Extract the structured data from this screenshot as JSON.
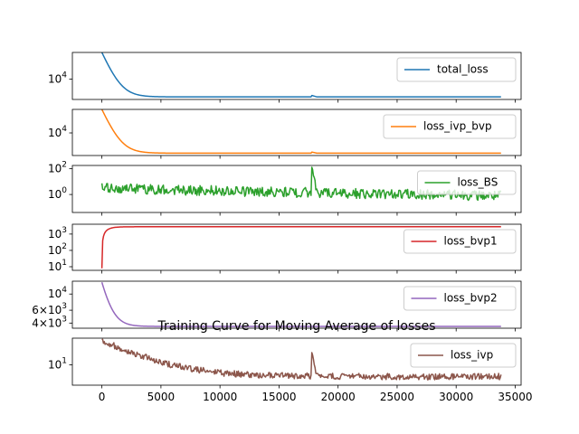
{
  "chart_data": {
    "type": "line",
    "title": "Training Curve for Moving Average of losses",
    "xlabel": "",
    "xlim": [
      -2500,
      35500
    ],
    "x_ticks": [
      0,
      5000,
      10000,
      15000,
      20000,
      25000,
      30000,
      35000
    ],
    "x_tick_labels": [
      "0",
      "5000",
      "10000",
      "15000",
      "20000",
      "25000",
      "30000",
      "35000"
    ],
    "x_max": 33800,
    "grid": false,
    "legend_placement": "upper right",
    "subplots": [
      {
        "name": "total_loss",
        "color": "#1f77b4",
        "yscale": "log",
        "ylim": [
          3500,
          40000
        ],
        "yticks": [
          10000
        ],
        "ytick_labels": [
          "10^4"
        ],
        "initial": 40000,
        "plateau": 4000,
        "decay_steps": 700,
        "noise": 0.0,
        "spike": {
          "x": 17800,
          "value": 4300
        }
      },
      {
        "name": "loss_ivp_bvp",
        "color": "#ff7f0e",
        "yscale": "log",
        "ylim": [
          3000,
          35000
        ],
        "yticks": [
          10000
        ],
        "ytick_labels": [
          "10^4"
        ],
        "initial": 35000,
        "plateau": 3400,
        "decay_steps": 700,
        "noise": 0.0,
        "spike": {
          "x": 17800,
          "value": 3600
        }
      },
      {
        "name": "loss_BS",
        "color": "#2ca02c",
        "yscale": "log",
        "ylim": [
          0.04,
          180
        ],
        "yticks": [
          1,
          100
        ],
        "ytick_labels": [
          "10^0",
          "10^2"
        ],
        "initial": 3,
        "plateau": 0.3,
        "decay_steps": 20000,
        "noise": 0.9,
        "spike": {
          "x": 17800,
          "value": 130
        }
      },
      {
        "name": "loss_bvp1",
        "color": "#d62728",
        "yscale": "log",
        "ylim": [
          6,
          4000
        ],
        "yticks": [
          10,
          100,
          1000
        ],
        "ytick_labels": [
          "10^1",
          "10^2",
          "10^3"
        ],
        "initial": 8,
        "plateau": 2800,
        "decay_steps": 450,
        "noise": 0.0,
        "spike": null
      },
      {
        "name": "loss_bvp2",
        "color": "#9467bd",
        "yscale": "log",
        "ylim": [
          3400,
          15000
        ],
        "yticks": [
          4000,
          6000,
          10000
        ],
        "ytick_labels": [
          "4×10^3",
          "6×10^3",
          "10^4"
        ],
        "initial": 14500,
        "plateau": 3600,
        "decay_steps": 600,
        "noise": 0.0,
        "spike": null
      },
      {
        "name": "loss_ivp",
        "color": "#8c564b",
        "yscale": "log",
        "ylim": [
          3.2,
          45
        ],
        "yticks": [
          10
        ],
        "ytick_labels": [
          "10^1"
        ],
        "initial": 40,
        "plateau": 5.2,
        "decay_steps": 3000,
        "noise": 0.18,
        "spike": {
          "x": 17800,
          "value": 20
        }
      }
    ]
  }
}
